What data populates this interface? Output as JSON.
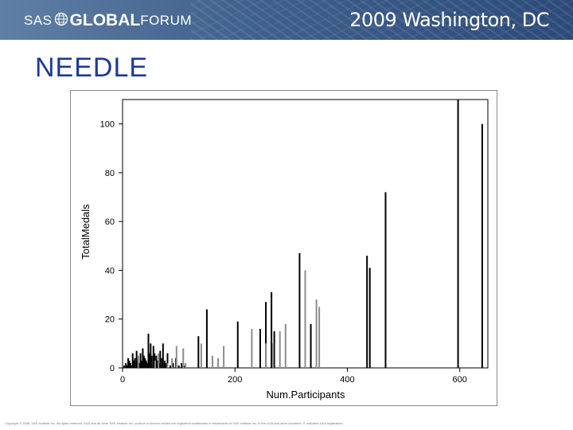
{
  "header": {
    "logo_prefix": "SAS",
    "logo_bold": "GLOBAL",
    "logo_suffix": "FORUM",
    "event": "2009 Washington, DC"
  },
  "slide": {
    "title": "NEEDLE"
  },
  "footer": {
    "text": "Copyright © 2008, SAS Institute Inc. All rights reserved. SAS and all other SAS Institute Inc. product or service names are registered trademarks or trademarks of SAS Institute Inc. in the USA and other countries. ® indicates USA registration."
  },
  "chart_data": {
    "type": "needle",
    "xlabel": "Num.Participants",
    "ylabel": "TotalMedals",
    "xlim": [
      0,
      650
    ],
    "ylim": [
      0,
      110
    ],
    "x_ticks": [
      0,
      200,
      400,
      600
    ],
    "y_ticks": [
      0,
      20,
      40,
      60,
      80,
      100
    ],
    "y_tick_labels": [
      "0",
      "20",
      "40",
      "60",
      "80",
      "100"
    ],
    "grid": false,
    "series": [
      {
        "color": "#000000",
        "x": [
          3,
          6,
          8,
          10,
          12,
          14,
          16,
          18,
          20,
          22,
          24,
          25,
          27,
          30,
          32,
          34,
          36,
          38,
          40,
          42,
          44,
          46,
          48,
          50,
          52,
          55,
          57,
          60,
          62,
          65,
          67,
          70,
          72,
          75,
          78,
          80,
          85,
          90,
          95,
          100,
          105,
          110,
          135,
          150,
          205,
          245,
          255,
          265,
          270,
          315,
          335,
          435,
          440,
          468,
          597,
          640
        ],
        "y": [
          1,
          2,
          1,
          4,
          3,
          2,
          1,
          6,
          3,
          4,
          2,
          7,
          3,
          2,
          6,
          3,
          8,
          5,
          4,
          3,
          2,
          14,
          6,
          10,
          5,
          9,
          6,
          5,
          3,
          2,
          7,
          4,
          10,
          3,
          2,
          6,
          1,
          2,
          4,
          1,
          2,
          1,
          13,
          24,
          19,
          16,
          27,
          31,
          15,
          47,
          18,
          46,
          41,
          72,
          110,
          100
        ]
      },
      {
        "color": "#8c8c8c",
        "x": [
          28,
          58,
          64,
          80,
          88,
          96,
          108,
          112,
          140,
          160,
          170,
          180,
          230,
          255,
          268,
          280,
          290,
          325,
          345,
          350
        ],
        "y": [
          5,
          3,
          6,
          2,
          4,
          9,
          8,
          2,
          10,
          5,
          4,
          9,
          16,
          10,
          10,
          15,
          18,
          40,
          28,
          25
        ]
      }
    ]
  }
}
